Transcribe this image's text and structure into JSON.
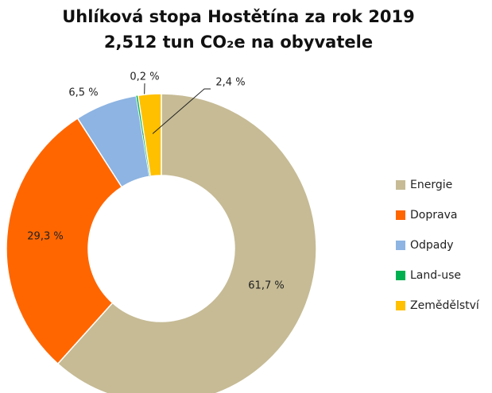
{
  "chart_data": {
    "type": "donut",
    "title": "Uhlíková stopa Hostětína za rok 2019",
    "subtitle": "2,512 tun CO₂e na obyvatele",
    "categories": [
      "Energie",
      "Doprava",
      "Odpady",
      "Land-use",
      "Zemědělství"
    ],
    "values": [
      61.7,
      29.3,
      6.5,
      0.2,
      2.4
    ],
    "value_labels": [
      "61,7 %",
      "29,3 %",
      "6,5 %",
      "0,2 %",
      "2,4 %"
    ],
    "colors": [
      "#c6bb95",
      "#ff6600",
      "#8db4e2",
      "#00b050",
      "#ffc000"
    ],
    "legend": "right"
  }
}
